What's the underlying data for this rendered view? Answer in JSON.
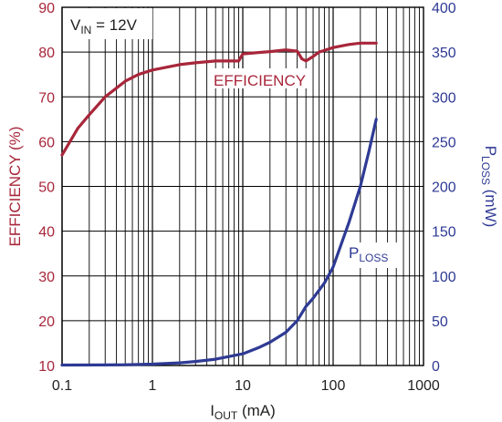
{
  "chart_data": {
    "type": "line",
    "x_scale": "log",
    "xlim": [
      0.1,
      1000
    ],
    "x_ticks": [
      "0.1",
      "1",
      "10",
      "100",
      "1000"
    ],
    "xlabel": {
      "main": "I",
      "sub": "OUT",
      "rest": " (mA)"
    },
    "y_left": {
      "label": "EFFICIENCY (%)",
      "lim": [
        10,
        90
      ],
      "ticks": [
        "10",
        "20",
        "30",
        "40",
        "50",
        "60",
        "70",
        "80",
        "90"
      ],
      "color": "#a8263a"
    },
    "y_right": {
      "label": {
        "main": "P",
        "sub": "LOSS",
        "rest": " (mW)"
      },
      "lim": [
        0,
        400
      ],
      "ticks": [
        "0",
        "50",
        "100",
        "150",
        "200",
        "250",
        "300",
        "350",
        "400"
      ],
      "color": "#2e3a94"
    },
    "grid": true,
    "annotation": {
      "main": "V",
      "sub": "IN",
      "rest": " = 12V"
    },
    "series": [
      {
        "name": "EFFICIENCY",
        "axis": "left",
        "color": "#a8263a",
        "x": [
          0.1,
          0.15,
          0.2,
          0.3,
          0.5,
          0.7,
          1,
          2,
          3,
          5,
          7,
          9,
          10,
          15,
          20,
          30,
          40,
          45,
          50,
          60,
          70,
          100,
          150,
          200,
          300
        ],
        "y": [
          57,
          63,
          66,
          70,
          73.5,
          75,
          76,
          77.2,
          77.6,
          78,
          78,
          78,
          79.6,
          79.9,
          80.1,
          80.5,
          80.2,
          78.5,
          78,
          79,
          80,
          81,
          81.7,
          82,
          82
        ]
      },
      {
        "name": {
          "main": "P",
          "sub": "LOSS"
        },
        "axis": "right",
        "color": "#2e3a94",
        "x": [
          0.1,
          0.3,
          0.5,
          1,
          2,
          3,
          5,
          7,
          10,
          15,
          20,
          30,
          40,
          50,
          60,
          80,
          100,
          150,
          200,
          250,
          300
        ],
        "y": [
          0.5,
          0.6,
          0.8,
          1.5,
          3,
          4.5,
          7,
          10,
          13,
          20,
          26,
          37,
          50,
          66,
          75,
          92,
          110,
          160,
          200,
          240,
          275
        ]
      }
    ]
  }
}
